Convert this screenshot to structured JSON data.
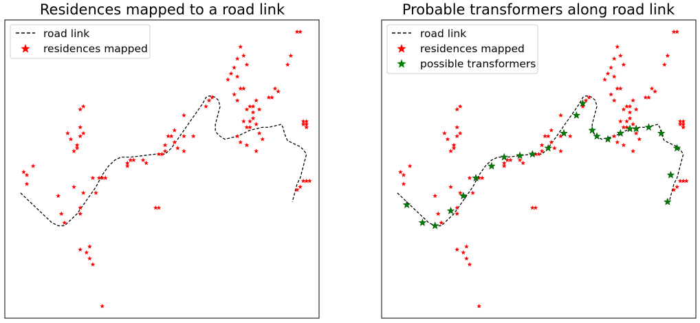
{
  "colors": {
    "road": "#000000",
    "residence": "#ff0000",
    "transformer": "#008000",
    "frame": "#000000"
  },
  "chart_data": [
    {
      "type": "scatter",
      "title": "Residences mapped to a road link",
      "xlim": [
        0,
        100
      ],
      "ylim": [
        0,
        100
      ],
      "axes_visible": false,
      "grid": false,
      "legend_position": "top-left",
      "legend": [
        "road link",
        "residences mapped"
      ],
      "series": [
        {
          "name": "road link",
          "style": "dashed-line",
          "points": [
            [
              5,
              42
            ],
            [
              7,
              40
            ],
            [
              9,
              38
            ],
            [
              11,
              36
            ],
            [
              13,
              34
            ],
            [
              15,
              32
            ],
            [
              17,
              31
            ],
            [
              19,
              31
            ],
            [
              21,
              33
            ],
            [
              23,
              35
            ],
            [
              25,
              38
            ],
            [
              27,
              41
            ],
            [
              29,
              44
            ],
            [
              31,
              48
            ],
            [
              33,
              51
            ],
            [
              35,
              53
            ],
            [
              37,
              54
            ],
            [
              40,
              54
            ],
            [
              44,
              54.5
            ],
            [
              48,
              55
            ],
            [
              51,
              55
            ],
            [
              53,
              57
            ],
            [
              55,
              60
            ],
            [
              57,
              63
            ],
            [
              59,
              66
            ],
            [
              61,
              69
            ],
            [
              63,
              72
            ],
            [
              64,
              74
            ],
            [
              65,
              74.5
            ],
            [
              66,
              74.5
            ],
            [
              67,
              74
            ],
            [
              68,
              73
            ],
            [
              68.5,
              71
            ],
            [
              68,
              69
            ],
            [
              67.5,
              67
            ],
            [
              67,
              65
            ],
            [
              67,
              63
            ],
            [
              67.5,
              62
            ],
            [
              68.5,
              61
            ],
            [
              70,
              60
            ],
            [
              72,
              60.5
            ],
            [
              74,
              61
            ],
            [
              76,
              62
            ],
            [
              78,
              63
            ],
            [
              80,
              63.5
            ],
            [
              82,
              64
            ],
            [
              84,
              64
            ],
            [
              86,
              64.5
            ],
            [
              88,
              65
            ],
            [
              88.5,
              64
            ],
            [
              89,
              62
            ],
            [
              89.5,
              60.5
            ],
            [
              90,
              59.5
            ],
            [
              91,
              59
            ],
            [
              92,
              58.5
            ],
            [
              93,
              58
            ],
            [
              94,
              57.5
            ],
            [
              95,
              56.5
            ],
            [
              96,
              55
            ],
            [
              95.5,
              53
            ],
            [
              95,
              51
            ],
            [
              94.5,
              49
            ],
            [
              94,
              47
            ],
            [
              93,
              45
            ],
            [
              92.5,
              43
            ],
            [
              92,
              41
            ],
            [
              91.5,
              39
            ]
          ]
        },
        {
          "name": "residences mapped",
          "style": "star",
          "points": [
            [
              6,
              49
            ],
            [
              7,
              48
            ],
            [
              7,
              45
            ],
            [
              9,
              51
            ],
            [
              17,
              41
            ],
            [
              18,
              35
            ],
            [
              19,
              32
            ],
            [
              25,
              42
            ],
            [
              22,
              44
            ],
            [
              24,
              37
            ],
            [
              24,
              35
            ],
            [
              28,
              47
            ],
            [
              30,
              47
            ],
            [
              31,
              47
            ],
            [
              32,
              47
            ],
            [
              22,
              56
            ],
            [
              23,
              57
            ],
            [
              23,
              58
            ],
            [
              21,
              60
            ],
            [
              20,
              62
            ],
            [
              24,
              61
            ],
            [
              25,
              62
            ],
            [
              24,
              64
            ],
            [
              24,
              70
            ],
            [
              25,
              71
            ],
            [
              39,
              51
            ],
            [
              39,
              52
            ],
            [
              40,
              53
            ],
            [
              41,
              53
            ],
            [
              44,
              53
            ],
            [
              45,
              52
            ],
            [
              49,
              55
            ],
            [
              51,
              56
            ],
            [
              50,
              55
            ],
            [
              51,
              58
            ],
            [
              52,
              61
            ],
            [
              53,
              61
            ],
            [
              54,
              59
            ],
            [
              55,
              57
            ],
            [
              57,
              56
            ],
            [
              57,
              68
            ],
            [
              54,
              63
            ],
            [
              57,
              61
            ],
            [
              60,
              61
            ],
            [
              64,
              71
            ],
            [
              65,
              73
            ],
            [
              66,
              74
            ],
            [
              71,
              80
            ],
            [
              73,
              75
            ],
            [
              74,
              73
            ],
            [
              72,
              82
            ],
            [
              73,
              84
            ],
            [
              74,
              87
            ],
            [
              75,
              91
            ],
            [
              76,
              88
            ],
            [
              77,
              85
            ],
            [
              74,
              81
            ],
            [
              75,
              77
            ],
            [
              76,
              77
            ],
            [
              77,
              70
            ],
            [
              78,
              71
            ],
            [
              79,
              69
            ],
            [
              79,
              71
            ],
            [
              80,
              73
            ],
            [
              81,
              70
            ],
            [
              77,
              64
            ],
            [
              78,
              64
            ],
            [
              76,
              66
            ],
            [
              78,
              66
            ],
            [
              79,
              67
            ],
            [
              80,
              65
            ],
            [
              81,
              62
            ],
            [
              82,
              60
            ],
            [
              74,
              61
            ],
            [
              75,
              59
            ],
            [
              77,
              58
            ],
            [
              80,
              56
            ],
            [
              84,
              74
            ],
            [
              85,
              74
            ],
            [
              86,
              77
            ],
            [
              87,
              76
            ],
            [
              90,
              85
            ],
            [
              91,
              88
            ],
            [
              93,
              96
            ],
            [
              94,
              96
            ],
            [
              95,
              65
            ],
            [
              96,
              64
            ],
            [
              96,
              65
            ],
            [
              95,
              66
            ],
            [
              96,
              66
            ],
            [
              95,
              46
            ],
            [
              96,
              46
            ],
            [
              97,
              46
            ],
            [
              94,
              44
            ],
            [
              93,
              43
            ],
            [
              29,
              42
            ],
            [
              24,
              23
            ],
            [
              26,
              22
            ],
            [
              27,
              20
            ],
            [
              28,
              18
            ],
            [
              27,
              24
            ],
            [
              48,
              37
            ],
            [
              49,
              37
            ],
            [
              31,
              4
            ]
          ]
        }
      ]
    },
    {
      "type": "scatter",
      "title": "Probable transformers along road link",
      "xlim": [
        0,
        100
      ],
      "ylim": [
        0,
        100
      ],
      "axes_visible": false,
      "grid": false,
      "legend_position": "top-left",
      "legend": [
        "road link",
        "residences mapped",
        "possible transformers"
      ],
      "series": [
        {
          "name": "road link",
          "style": "dashed-line",
          "same_as_panel": 0
        },
        {
          "name": "residences mapped",
          "style": "star",
          "same_as_panel": 0
        },
        {
          "name": "possible transformers",
          "style": "star",
          "points": [
            [
              8,
              38
            ],
            [
              13,
              32
            ],
            [
              17,
              31
            ],
            [
              22,
              36
            ],
            [
              26,
              41
            ],
            [
              30,
              47
            ],
            [
              35,
              51
            ],
            [
              39,
              54
            ],
            [
              44,
              54.5
            ],
            [
              48,
              55
            ],
            [
              53,
              57
            ],
            [
              58,
              62
            ],
            [
              62,
              68
            ],
            [
              64,
              72
            ],
            [
              67,
              63
            ],
            [
              68.5,
              61
            ],
            [
              72,
              60
            ],
            [
              76,
              62
            ],
            [
              79,
              63.5
            ],
            [
              81,
              63.5
            ],
            [
              85,
              64
            ],
            [
              89,
              62
            ],
            [
              94,
              57
            ],
            [
              92,
              48
            ],
            [
              91,
              39
            ]
          ]
        }
      ]
    }
  ]
}
